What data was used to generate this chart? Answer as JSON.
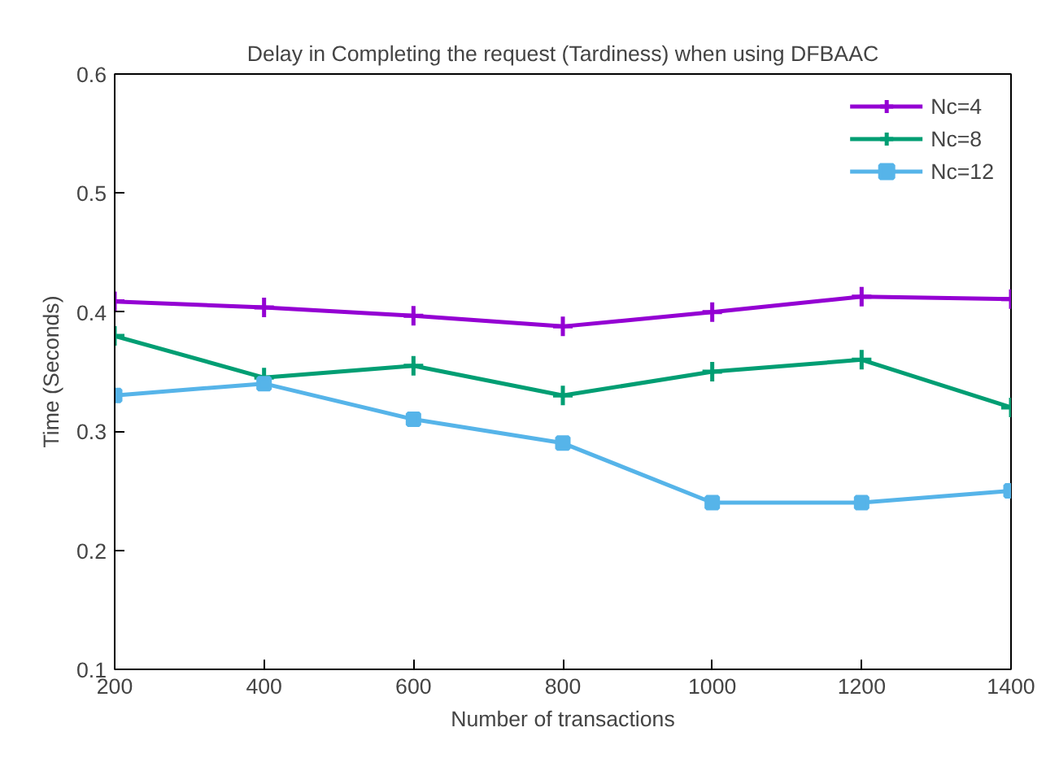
{
  "chart_data": {
    "type": "line",
    "title": "Delay in Completing the request (Tardiness) when using DFBAAC",
    "xlabel": "Number of transactions",
    "ylabel": "Time (Seconds)",
    "x": [
      200,
      400,
      600,
      800,
      1000,
      1200,
      1400
    ],
    "series": [
      {
        "name": "Nc=4",
        "color": "#9400d3",
        "marker": "cross",
        "values": [
          0.409,
          0.404,
          0.397,
          0.388,
          0.4,
          0.413,
          0.411
        ]
      },
      {
        "name": "Nc=8",
        "color": "#009e73",
        "marker": "cross",
        "values": [
          0.38,
          0.345,
          0.355,
          0.33,
          0.35,
          0.36,
          0.32
        ]
      },
      {
        "name": "Nc=12",
        "color": "#56b4e9",
        "marker": "square",
        "values": [
          0.33,
          0.34,
          0.31,
          0.29,
          0.24,
          0.24,
          0.25
        ]
      }
    ],
    "xlim": [
      200,
      1400
    ],
    "ylim": [
      0.1,
      0.6
    ],
    "xticks": [
      200,
      400,
      600,
      800,
      1000,
      1200,
      1400
    ],
    "yticks": [
      0.1,
      0.2,
      0.3,
      0.4,
      0.5,
      0.6
    ],
    "grid": false,
    "legend": "top right",
    "line_style": "solid"
  }
}
